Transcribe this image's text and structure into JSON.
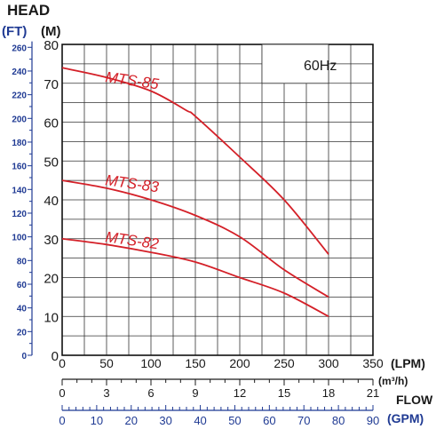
{
  "chart_data": {
    "type": "line",
    "ylabel": "HEAD",
    "y_units": {
      "ft": "(FT)",
      "m": "(M)"
    },
    "xlabel": "FLOW",
    "x_units": {
      "lpm": "(LPM)",
      "m3h": "(m³/h)",
      "gpm": "(GPM)"
    },
    "frequency_label": "60Hz",
    "x_lpm": {
      "range": [
        0,
        350
      ],
      "ticks": [
        "0",
        "50",
        "100",
        "150",
        "200",
        "250",
        "300",
        "350"
      ]
    },
    "x_m3h": {
      "range": [
        0,
        21
      ],
      "ticks": [
        "0",
        "3",
        "6",
        "9",
        "12",
        "15",
        "18",
        "21"
      ]
    },
    "x_gpm": {
      "range": [
        0,
        90
      ],
      "ticks": [
        "0",
        "10",
        "20",
        "30",
        "40",
        "50",
        "60",
        "70",
        "80",
        "90"
      ]
    },
    "y_m": {
      "range": [
        0,
        80
      ],
      "ticks": [
        "0",
        "10",
        "20",
        "30",
        "40",
        "50",
        "60",
        "70",
        "80"
      ]
    },
    "y_ft": {
      "range": [
        0,
        260
      ],
      "ticks": [
        "0",
        "20",
        "40",
        "60",
        "80",
        "100",
        "120",
        "140",
        "160",
        "180",
        "200",
        "220",
        "240",
        "260"
      ]
    },
    "grid": true,
    "series": [
      {
        "name": "MTS-85",
        "color": "#d42028",
        "x": [
          0,
          50,
          100,
          140,
          150,
          200,
          250,
          300
        ],
        "y": [
          74,
          71.5,
          68,
          63,
          61.5,
          51,
          40,
          26
        ]
      },
      {
        "name": "MTS-83",
        "color": "#d42028",
        "x": [
          0,
          50,
          100,
          150,
          200,
          250,
          300
        ],
        "y": [
          45,
          43,
          40,
          36,
          30.5,
          22,
          15
        ]
      },
      {
        "name": "MTS-82",
        "color": "#d42028",
        "x": [
          0,
          50,
          100,
          150,
          200,
          250,
          300
        ],
        "y": [
          30,
          28.5,
          26.5,
          24,
          20,
          16,
          10
        ]
      }
    ]
  }
}
